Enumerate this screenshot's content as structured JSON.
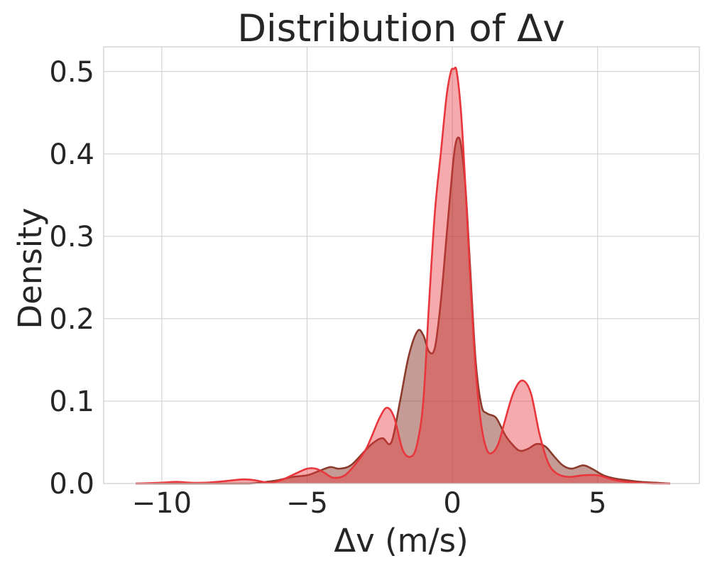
{
  "chart_data": {
    "type": "area",
    "title": "Distribution of Δv",
    "xlabel": "Δv (m/s)",
    "ylabel": "Density",
    "xlim": [
      -12,
      8.5
    ],
    "ylim": [
      0,
      0.53
    ],
    "xticks": [
      -10,
      -5,
      0,
      5
    ],
    "xtick_labels": [
      "−10",
      "−5",
      "0",
      "5"
    ],
    "yticks": [
      0.0,
      0.1,
      0.2,
      0.3,
      0.4,
      0.5
    ],
    "ytick_labels": [
      "0.0",
      "0.1",
      "0.2",
      "0.3",
      "0.4",
      "0.5"
    ],
    "grid": true,
    "legend": "none",
    "series": [
      {
        "color": "#8b3a2b",
        "x": [
          -10.9,
          -9.5,
          -8.0,
          -7.0,
          -6.4,
          -6.0,
          -5.5,
          -5.0,
          -4.6,
          -4.2,
          -3.9,
          -3.5,
          -3.0,
          -2.7,
          -2.4,
          -2.1,
          -1.8,
          -1.5,
          -1.2,
          -1.0,
          -0.8,
          -0.6,
          -0.4,
          -0.2,
          0.0,
          0.1,
          0.2,
          0.3,
          0.45,
          0.6,
          0.8,
          1.0,
          1.2,
          1.5,
          1.8,
          2.0,
          2.3,
          2.6,
          2.9,
          3.2,
          3.5,
          3.8,
          4.1,
          4.5,
          4.8,
          5.2,
          5.6,
          6.0,
          6.5,
          7.0,
          7.5
        ],
        "y": [
          0.0,
          0.0,
          0.0,
          0.0,
          0.002,
          0.004,
          0.008,
          0.01,
          0.015,
          0.02,
          0.018,
          0.022,
          0.04,
          0.05,
          0.055,
          0.05,
          0.1,
          0.155,
          0.185,
          0.18,
          0.16,
          0.165,
          0.22,
          0.3,
          0.38,
          0.41,
          0.42,
          0.41,
          0.36,
          0.27,
          0.15,
          0.095,
          0.085,
          0.08,
          0.06,
          0.05,
          0.04,
          0.042,
          0.048,
          0.045,
          0.033,
          0.022,
          0.018,
          0.022,
          0.018,
          0.01,
          0.006,
          0.004,
          0.002,
          0.001,
          0.0
        ]
      },
      {
        "color": "#e8363c",
        "x": [
          -10.9,
          -10.0,
          -9.5,
          -9.0,
          -8.5,
          -7.8,
          -7.2,
          -6.8,
          -6.3,
          -5.9,
          -5.4,
          -5.0,
          -4.7,
          -4.4,
          -4.1,
          -3.7,
          -3.3,
          -3.0,
          -2.8,
          -2.5,
          -2.25,
          -2.0,
          -1.7,
          -1.4,
          -1.2,
          -1.0,
          -0.8,
          -0.6,
          -0.4,
          -0.2,
          -0.05,
          0.05,
          0.15,
          0.3,
          0.45,
          0.6,
          0.8,
          1.0,
          1.2,
          1.4,
          1.6,
          1.8,
          2.1,
          2.4,
          2.7,
          3.0,
          3.3,
          3.6,
          4.0,
          4.5,
          5.0,
          5.5,
          6.0,
          7.0,
          7.5
        ],
        "y": [
          0.0,
          0.001,
          0.002,
          0.001,
          0.001,
          0.003,
          0.005,
          0.004,
          0.001,
          0.004,
          0.012,
          0.018,
          0.018,
          0.013,
          0.007,
          0.01,
          0.025,
          0.04,
          0.055,
          0.08,
          0.092,
          0.08,
          0.04,
          0.033,
          0.05,
          0.1,
          0.22,
          0.33,
          0.4,
          0.47,
          0.5,
          0.503,
          0.5,
          0.45,
          0.36,
          0.26,
          0.14,
          0.07,
          0.04,
          0.038,
          0.05,
          0.075,
          0.11,
          0.125,
          0.11,
          0.06,
          0.025,
          0.012,
          0.008,
          0.01,
          0.01,
          0.005,
          0.002,
          0.0,
          0.0
        ]
      }
    ]
  }
}
